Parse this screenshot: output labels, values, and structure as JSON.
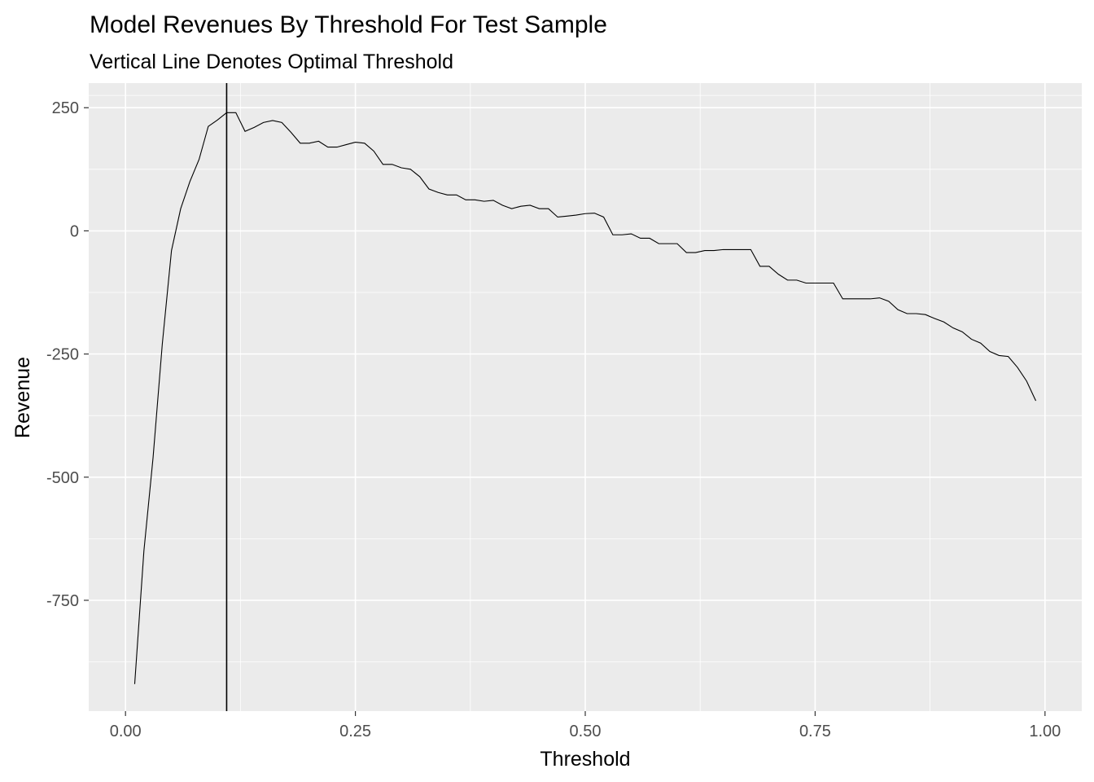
{
  "chart_data": {
    "type": "line",
    "title": "Model Revenues By Threshold For Test Sample",
    "subtitle": "Vertical Line Denotes Optimal Threshold",
    "xlabel": "Threshold",
    "ylabel": "Revenue",
    "xlim": [
      -0.04,
      1.04
    ],
    "ylim": [
      -975,
      300
    ],
    "x_ticks": [
      0.0,
      0.25,
      0.5,
      0.75,
      1.0
    ],
    "x_tick_labels": [
      "0.00",
      "0.25",
      "0.50",
      "0.75",
      "1.00"
    ],
    "y_ticks": [
      250,
      0,
      -250,
      -500,
      -750
    ],
    "y_tick_labels": [
      "250",
      "0",
      "-250",
      "-500",
      "-750"
    ],
    "grid": true,
    "optimal_threshold": 0.11,
    "series": [
      {
        "x": [
          0.01,
          0.02,
          0.03,
          0.04,
          0.05,
          0.06,
          0.07,
          0.08,
          0.09,
          0.1,
          0.11,
          0.12,
          0.13,
          0.14,
          0.15,
          0.16,
          0.17,
          0.18,
          0.19,
          0.2,
          0.21,
          0.22,
          0.23,
          0.24,
          0.25,
          0.26,
          0.27,
          0.28,
          0.29,
          0.3,
          0.31,
          0.32,
          0.33,
          0.34,
          0.35,
          0.36,
          0.37,
          0.38,
          0.39,
          0.4,
          0.41,
          0.42,
          0.43,
          0.44,
          0.45,
          0.46,
          0.47,
          0.48,
          0.49,
          0.5,
          0.51,
          0.52,
          0.53,
          0.54,
          0.55,
          0.56,
          0.57,
          0.58,
          0.59,
          0.6,
          0.61,
          0.62,
          0.63,
          0.64,
          0.65,
          0.66,
          0.67,
          0.68,
          0.69,
          0.7,
          0.71,
          0.72,
          0.73,
          0.74,
          0.75,
          0.76,
          0.77,
          0.78,
          0.79,
          0.8,
          0.81,
          0.82,
          0.83,
          0.84,
          0.85,
          0.86,
          0.87,
          0.88,
          0.89,
          0.9,
          0.91,
          0.92,
          0.93,
          0.94,
          0.95,
          0.96,
          0.97,
          0.98,
          0.99
        ],
        "values": [
          -920,
          -650,
          -460,
          -230,
          -40,
          45,
          100,
          145,
          212,
          225,
          240,
          240,
          202,
          210,
          220,
          224,
          220,
          200,
          178,
          178,
          182,
          170,
          170,
          175,
          180,
          178,
          162,
          135,
          135,
          128,
          125,
          110,
          85,
          78,
          73,
          73,
          63,
          63,
          60,
          62,
          52,
          45,
          50,
          52,
          45,
          45,
          28,
          30,
          32,
          35,
          36,
          28,
          -8,
          -8,
          -6,
          -15,
          -15,
          -26,
          -26,
          -26,
          -44,
          -44,
          -40,
          -40,
          -38,
          -38,
          -38,
          -38,
          -72,
          -72,
          -88,
          -100,
          -100,
          -106,
          -106,
          -106,
          -106,
          -138,
          -138,
          -138,
          -138,
          -136,
          -143,
          -160,
          -168,
          -168,
          -170,
          -178,
          -185,
          -197,
          -205,
          -220,
          -228,
          -245,
          -253,
          -255,
          -277,
          -305,
          -345
        ]
      }
    ]
  }
}
